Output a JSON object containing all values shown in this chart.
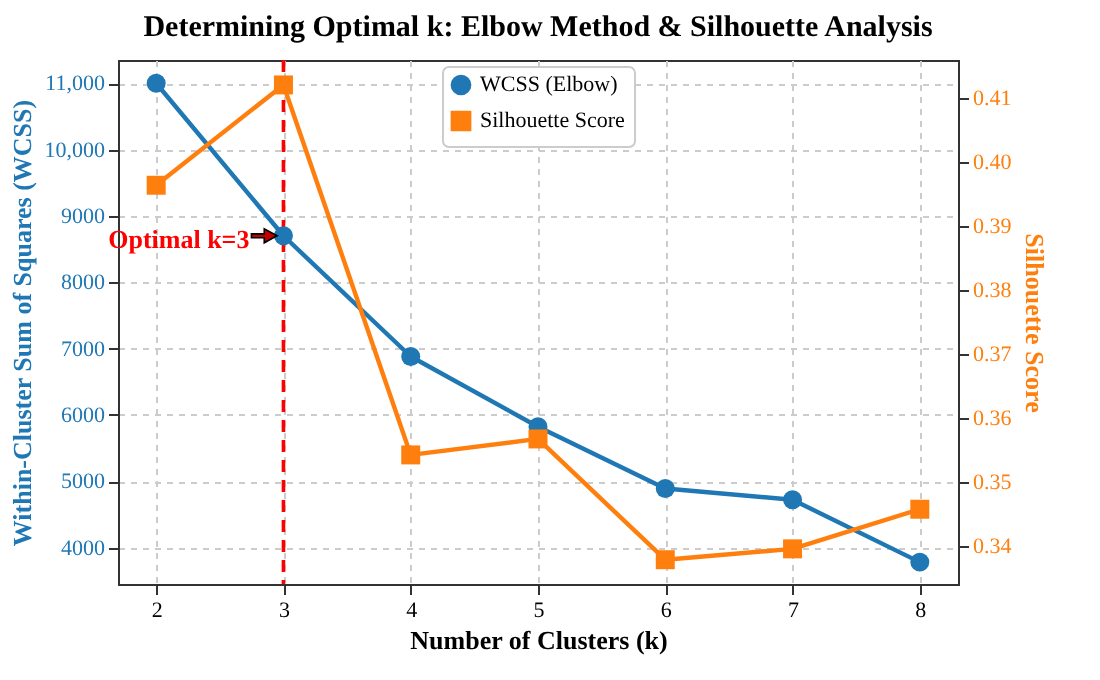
{
  "chart_data": {
    "type": "line",
    "title": "Determining Optimal k: Elbow Method & Silhouette Analysis",
    "xlabel": "Number of Clusters (k)",
    "ylabel": "Within-Cluster Sum of Squares (WCSS)",
    "y2label": "Silhouette Score",
    "x": [
      2,
      3,
      4,
      5,
      6,
      7,
      8
    ],
    "series": [
      {
        "name": "WCSS (Elbow)",
        "color": "#1f77b4",
        "marker": "circle",
        "values": [
          11000,
          8700,
          6880,
          5820,
          4890,
          4720,
          3780
        ]
      },
      {
        "name": "Silhouette Score",
        "color": "#ff7f0e",
        "marker": "square",
        "axis": "y2",
        "values": [
          0.3964,
          0.4121,
          0.3542,
          0.3567,
          0.3378,
          0.3395,
          0.3457
        ]
      }
    ],
    "xlim": [
      1.7,
      8.3
    ],
    "xticks": [
      2,
      3,
      4,
      5,
      6,
      7,
      8
    ],
    "ylim": [
      3450,
      11350
    ],
    "yticks": [
      4000,
      5000,
      6000,
      7000,
      8000,
      9000,
      {
        "value": 10000,
        "label": "10,000"
      },
      {
        "value": 11000,
        "label": "11,000"
      }
    ],
    "y2lim": [
      0.334,
      0.416
    ],
    "y2ticks": [
      0.34,
      0.35,
      0.36,
      0.37,
      0.38,
      0.39,
      {
        "value": 0.4,
        "label": "0.40"
      },
      0.41
    ],
    "ref_lines": [
      {
        "axis": "x",
        "value": 3,
        "color": "#ff0000",
        "line_style": "dashed"
      }
    ],
    "annotations": [
      {
        "text": "Optimal k=3",
        "x": 3,
        "y": 8700
      }
    ],
    "grid": true,
    "legend": "top",
    "line_style": "solid"
  }
}
